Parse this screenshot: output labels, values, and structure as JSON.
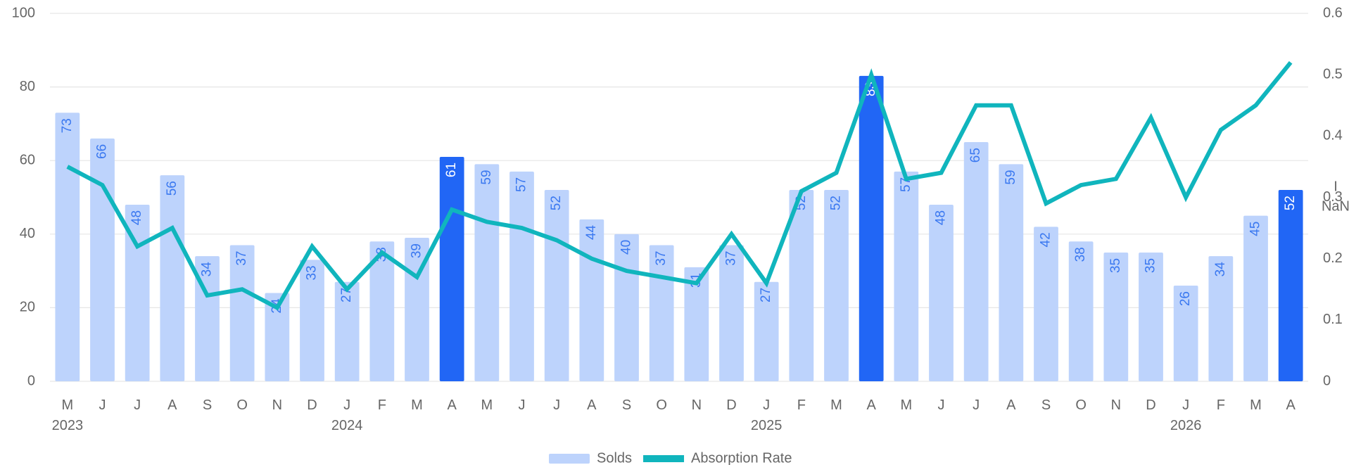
{
  "chart_data": {
    "type": "bar_line",
    "categories": [
      "M\n2023",
      "J",
      "J",
      "A",
      "S",
      "O",
      "N",
      "D",
      "J\n2024",
      "F",
      "M",
      "A",
      "M",
      "J",
      "J",
      "A",
      "S",
      "O",
      "N",
      "D",
      "J\n2025",
      "F",
      "M",
      "A",
      "M",
      "J",
      "J",
      "A",
      "S",
      "O",
      "N",
      "D",
      "J\n2026",
      "F",
      "M",
      "A"
    ],
    "series": [
      {
        "name": "Solds",
        "type": "bar",
        "color": "#bdd3fc",
        "colors": [
          "#bdd3fc",
          "#bdd3fc",
          "#bdd3fc",
          "#bdd3fc",
          "#bdd3fc",
          "#bdd3fc",
          "#bdd3fc",
          "#bdd3fc",
          "#bdd3fc",
          "#bdd3fc",
          "#bdd3fc",
          "#2166f5",
          "#bdd3fc",
          "#bdd3fc",
          "#bdd3fc",
          "#bdd3fc",
          "#bdd3fc",
          "#bdd3fc",
          "#bdd3fc",
          "#bdd3fc",
          "#bdd3fc",
          "#bdd3fc",
          "#bdd3fc",
          "#2166f5",
          "#bdd3fc",
          "#bdd3fc",
          "#bdd3fc",
          "#bdd3fc",
          "#bdd3fc",
          "#bdd3fc",
          "#bdd3fc",
          "#bdd3fc",
          "#bdd3fc",
          "#bdd3fc",
          "#bdd3fc",
          "#2166f5"
        ],
        "values": [
          73,
          66,
          48,
          56,
          34,
          37,
          24,
          33,
          27,
          38,
          39,
          61,
          59,
          57,
          52,
          44,
          40,
          37,
          31,
          37,
          27,
          52,
          52,
          83,
          57,
          48,
          65,
          59,
          42,
          38,
          35,
          35,
          26,
          34,
          45,
          52
        ]
      },
      {
        "name": "Absorption Rate",
        "type": "line",
        "axis": "y2",
        "color": "#10b5bd",
        "values": [
          0.35,
          0.32,
          0.22,
          0.25,
          0.14,
          0.15,
          0.12,
          0.22,
          0.15,
          0.21,
          0.17,
          0.28,
          0.26,
          0.25,
          0.23,
          0.2,
          0.18,
          0.17,
          0.16,
          0.24,
          0.16,
          0.31,
          0.34,
          0.5,
          0.33,
          0.34,
          0.45,
          0.45,
          0.29,
          0.32,
          0.33,
          0.43,
          0.3,
          0.41,
          0.45,
          0.52
        ]
      }
    ],
    "ylim": [
      0,
      100
    ],
    "yticks": [
      0,
      20,
      40,
      60,
      80,
      100
    ],
    "y2lim": [
      0,
      0.6
    ],
    "y2ticks": [
      0,
      0.1,
      0.2,
      0.3,
      0.4,
      0.5,
      0.6
    ],
    "y2_annotation": [
      "I",
      "NaN"
    ],
    "grid": true,
    "legend": "bottom"
  }
}
